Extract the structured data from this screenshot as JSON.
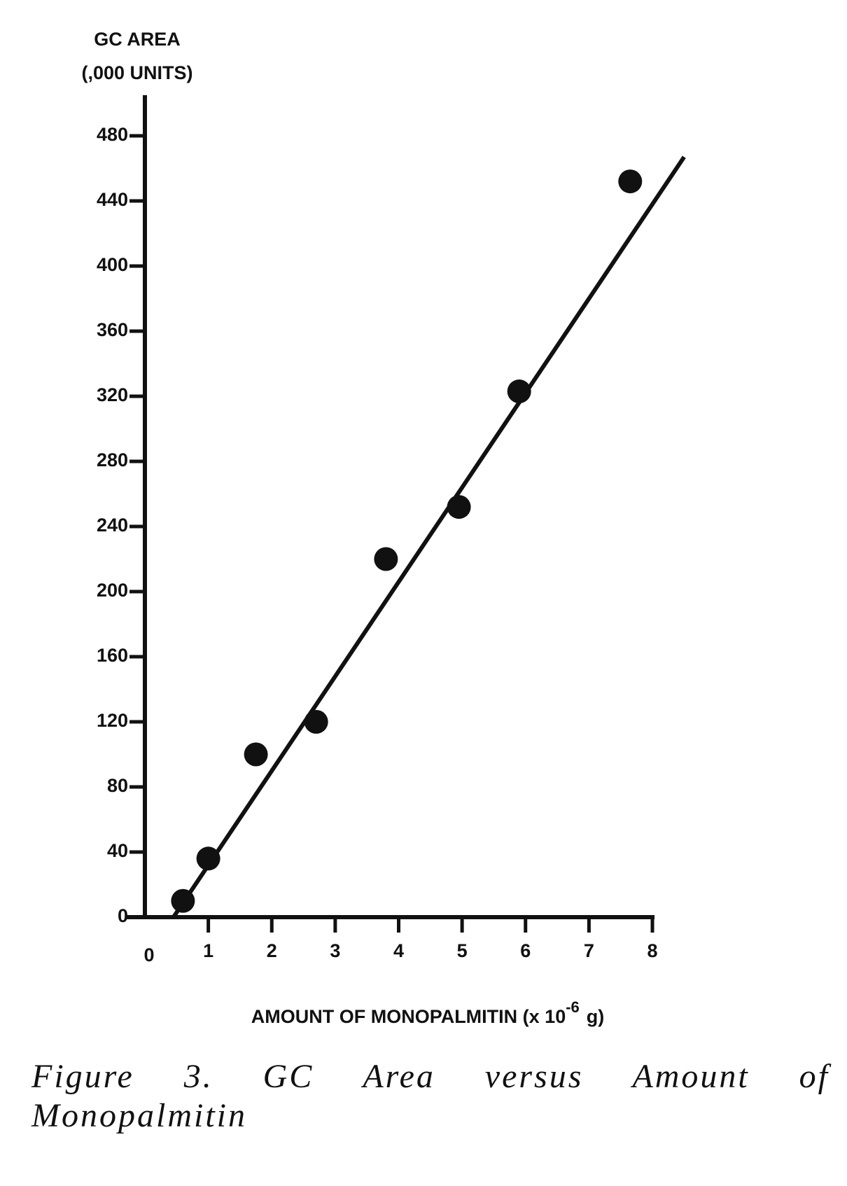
{
  "chart_data": {
    "type": "scatter",
    "ylabel": [
      "GC AREA",
      "(,000 UNITS)"
    ],
    "xlabel": {
      "text": "AMOUNT OF MONOPALMITIN  (x 10",
      "sup": "-6",
      "tail": "g)"
    },
    "x": [
      0.6,
      1.0,
      1.75,
      2.7,
      3.8,
      4.95,
      5.9,
      7.65
    ],
    "values": [
      10,
      36,
      100,
      120,
      220,
      252,
      323,
      452
    ],
    "fit": {
      "x": [
        0.45,
        8.5
      ],
      "y": [
        0,
        467
      ]
    },
    "color": "#111111",
    "xlim": [
      0,
      8
    ],
    "ylim": [
      0,
      505
    ],
    "xticks": [
      0,
      1,
      2,
      3,
      4,
      5,
      6,
      7,
      8
    ],
    "yticks": [
      0,
      40,
      80,
      120,
      160,
      200,
      240,
      280,
      320,
      360,
      400,
      440,
      480
    ],
    "grid": false
  },
  "caption": "Figure 3. GC Area versus Amount of Monopalmitin"
}
